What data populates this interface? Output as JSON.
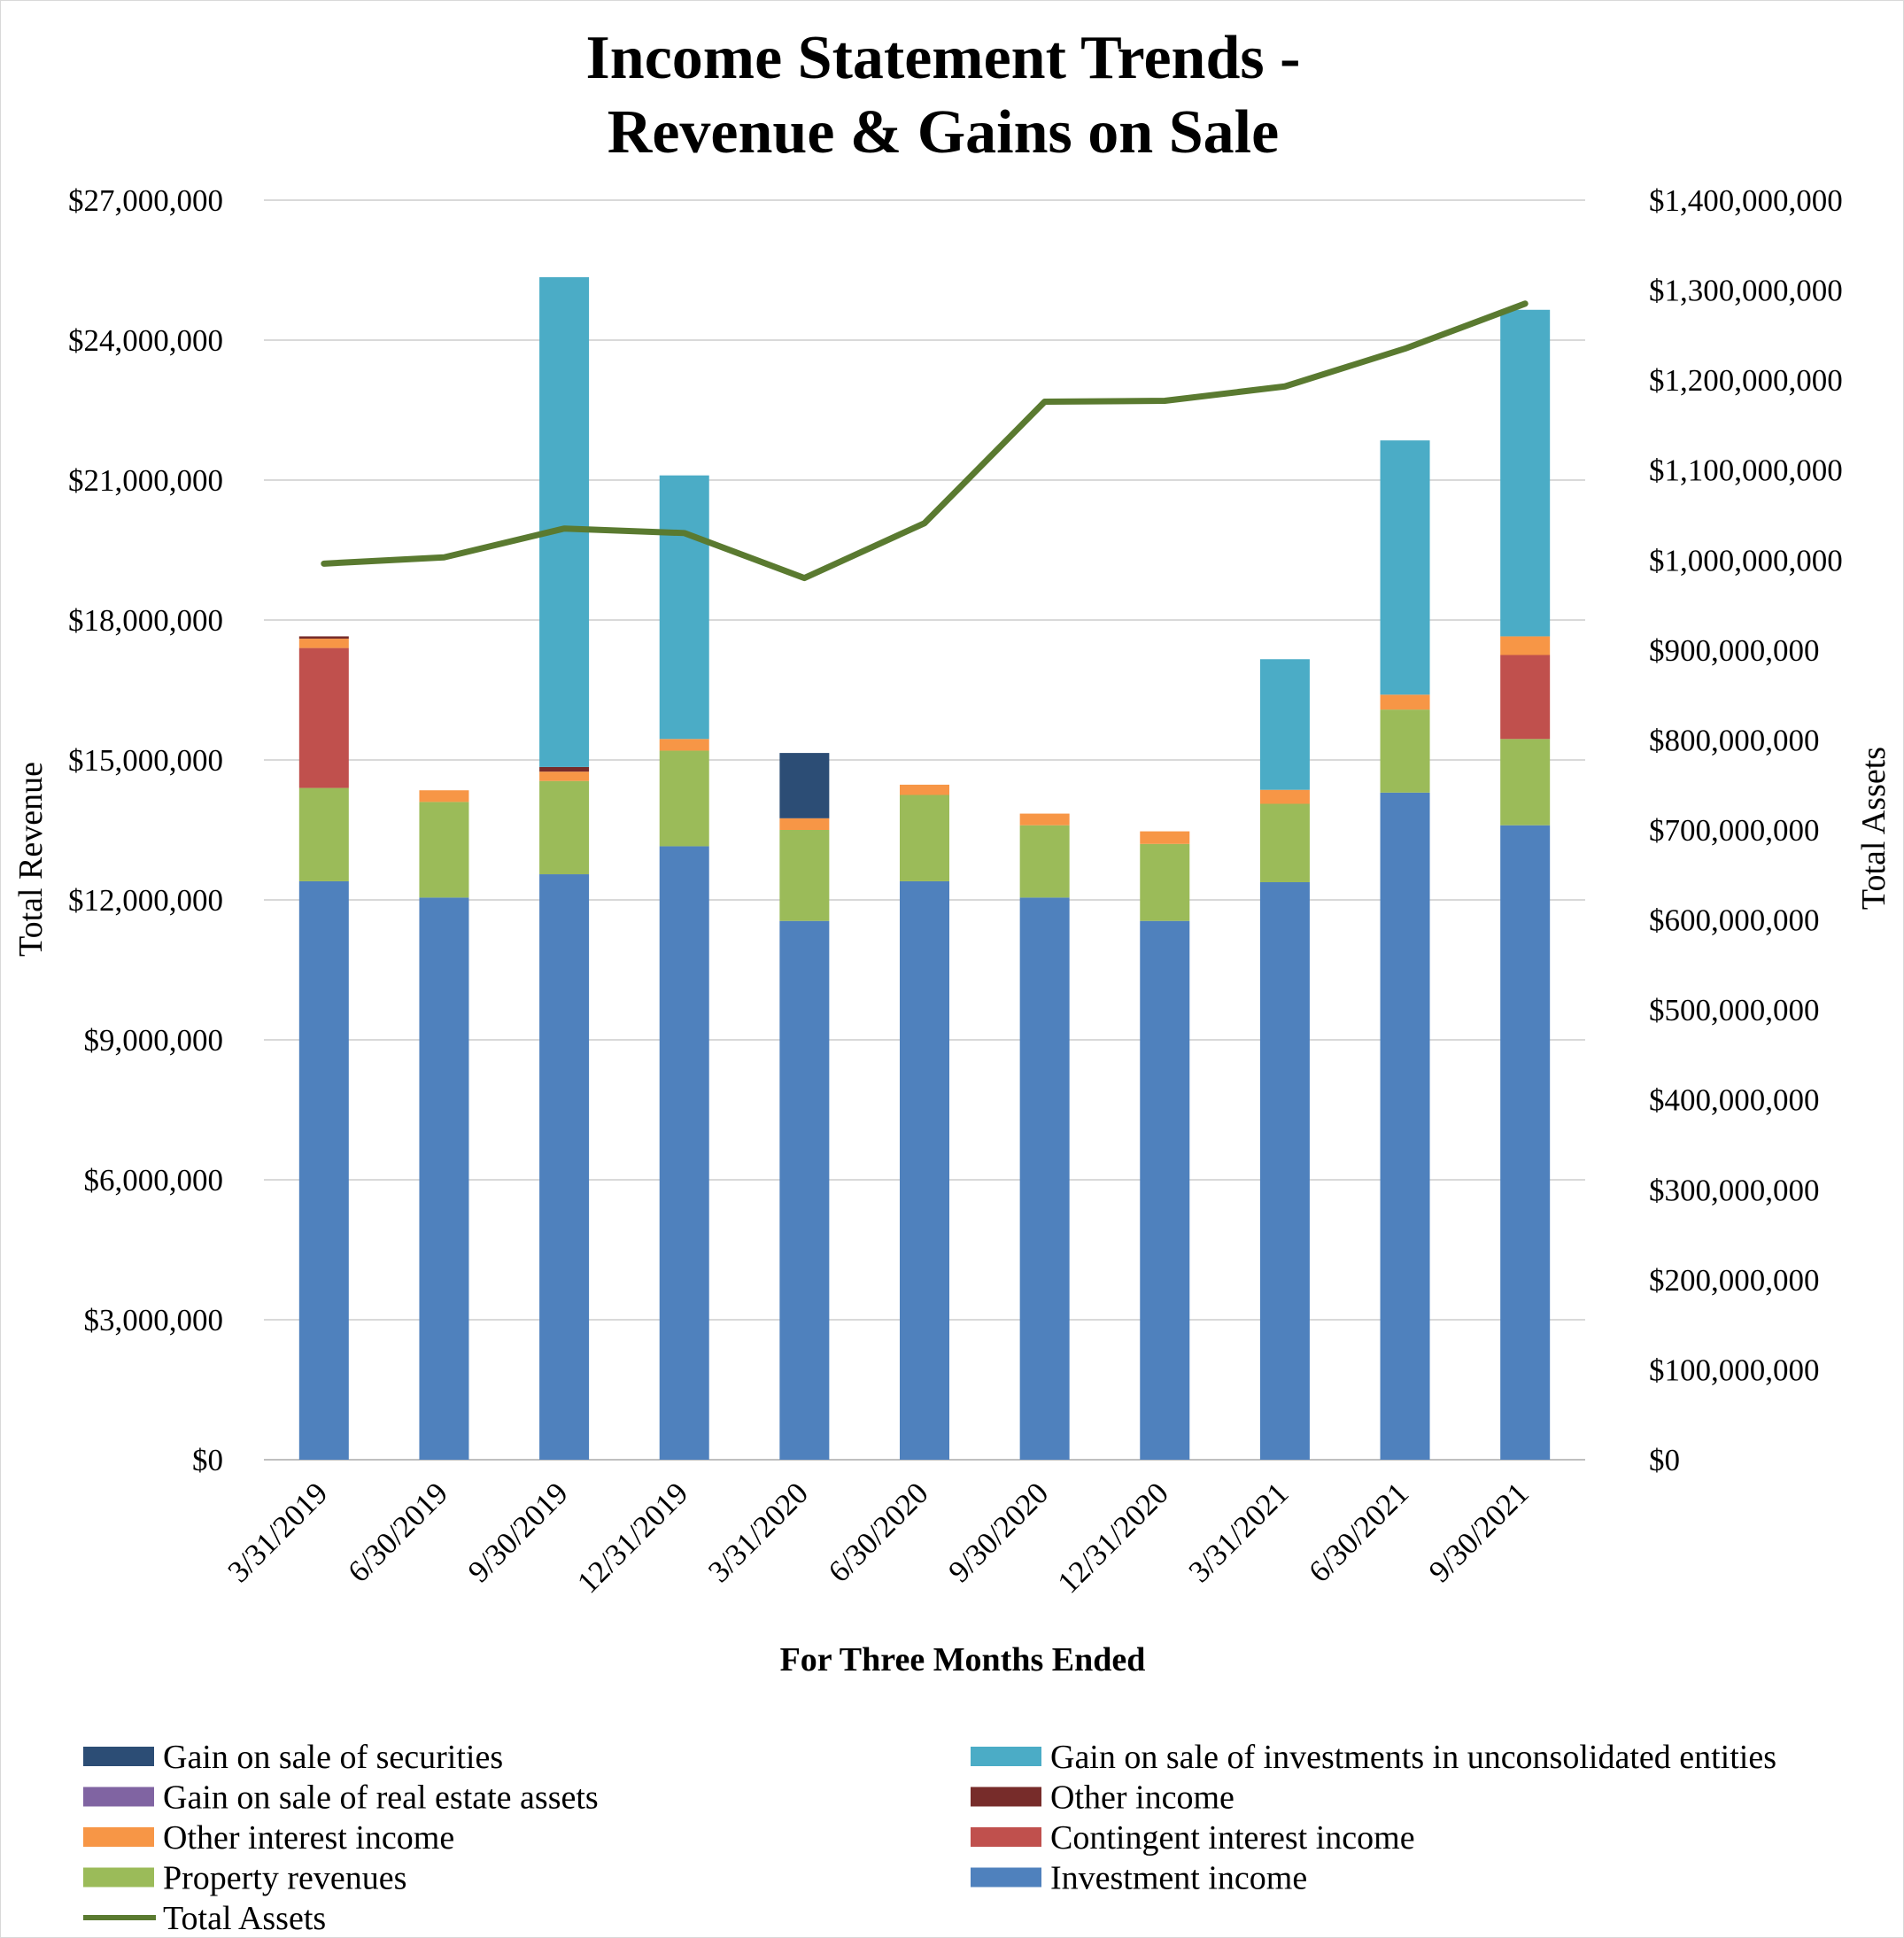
{
  "chart_data": {
    "type": "bar",
    "subtype": "stacked-bar-with-line",
    "title_line1": "Income Statement Trends -",
    "title_line2": "Revenue & Gains on Sale",
    "xlabel": "For Three Months Ended",
    "ylabel": "Total Revenue",
    "y2label": "Total Assets",
    "ylim": [
      0,
      27000000
    ],
    "y2lim": [
      0,
      1400000000
    ],
    "yticks": [
      0,
      3000000,
      6000000,
      9000000,
      12000000,
      15000000,
      18000000,
      21000000,
      24000000,
      27000000
    ],
    "y2ticks": [
      0,
      100000000,
      200000000,
      300000000,
      400000000,
      500000000,
      600000000,
      700000000,
      800000000,
      900000000,
      1000000000,
      1100000000,
      1200000000,
      1300000000,
      1400000000
    ],
    "ytick_labels": [
      "$0",
      "$3,000,000",
      "$6,000,000",
      "$9,000,000",
      "$12,000,000",
      "$15,000,000",
      "$18,000,000",
      "$21,000,000",
      "$24,000,000",
      "$27,000,000"
    ],
    "y2tick_labels": [
      "$0",
      "$100,000,000",
      "$200,000,000",
      "$300,000,000",
      "$400,000,000",
      "$500,000,000",
      "$600,000,000",
      "$700,000,000",
      "$800,000,000",
      "$900,000,000",
      "$1,000,000,000",
      "$1,100,000,000",
      "$1,200,000,000",
      "$1,300,000,000",
      "$1,400,000,000"
    ],
    "grid": true,
    "legend_position": "bottom",
    "categories": [
      "3/31/2019",
      "6/30/2019",
      "9/30/2019",
      "12/31/2019",
      "3/31/2020",
      "6/30/2020",
      "9/30/2020",
      "12/31/2020",
      "3/31/2021",
      "6/30/2021",
      "9/30/2021"
    ],
    "series": [
      {
        "name": "Investment income",
        "color": "#4f81bd",
        "values": [
          12400000,
          12050000,
          12550000,
          13150000,
          11550000,
          12400000,
          12050000,
          11550000,
          12380000,
          14300000,
          13600000
        ]
      },
      {
        "name": "Property revenues",
        "color": "#9bbb59",
        "values": [
          2000000,
          2050000,
          2000000,
          2050000,
          1950000,
          1850000,
          1550000,
          1650000,
          1680000,
          1780000,
          1850000
        ]
      },
      {
        "name": "Contingent interest income",
        "color": "#c0504d",
        "values": [
          3000000,
          0,
          0,
          0,
          0,
          0,
          0,
          0,
          0,
          0,
          1800000
        ]
      },
      {
        "name": "Other interest income",
        "color": "#f79646",
        "values": [
          200000,
          250000,
          200000,
          250000,
          250000,
          220000,
          250000,
          270000,
          300000,
          320000,
          400000
        ]
      },
      {
        "name": "Other income",
        "color": "#772c2a",
        "values": [
          50000,
          0,
          100000,
          0,
          0,
          0,
          0,
          0,
          0,
          0,
          0
        ]
      },
      {
        "name": "Gain on sale of real estate assets",
        "color": "#8064a2",
        "values": [
          0,
          0,
          0,
          0,
          0,
          0,
          0,
          0,
          0,
          0,
          0
        ]
      },
      {
        "name": "Gain on sale of securities",
        "color": "#2c4d75",
        "values": [
          0,
          0,
          0,
          0,
          1400000,
          0,
          0,
          0,
          0,
          0,
          0
        ]
      },
      {
        "name": "Gain on sale of investments in unconsolidated entities",
        "color": "#4bacc6",
        "values": [
          0,
          0,
          10500000,
          5650000,
          0,
          0,
          0,
          0,
          2800000,
          5450000,
          7000000
        ]
      }
    ],
    "line_series": {
      "name": "Total Assets",
      "color": "#5a7a30",
      "axis": "right",
      "values": [
        996000000,
        1003000000,
        1035000000,
        1030000000,
        980000000,
        1041000000,
        1176000000,
        1177000000,
        1193000000,
        1235000000,
        1285000000
      ]
    },
    "legend": [
      {
        "name": "Gain on sale of securities",
        "color": "#2c4d75",
        "kind": "box"
      },
      {
        "name": "Gain on sale of investments in unconsolidated entities",
        "color": "#4bacc6",
        "kind": "box"
      },
      {
        "name": "Gain on sale of real estate assets",
        "color": "#8064a2",
        "kind": "box"
      },
      {
        "name": "Other income",
        "color": "#772c2a",
        "kind": "box"
      },
      {
        "name": "Other interest income",
        "color": "#f79646",
        "kind": "box"
      },
      {
        "name": "Contingent interest income",
        "color": "#c0504d",
        "kind": "box"
      },
      {
        "name": "Property revenues",
        "color": "#9bbb59",
        "kind": "box"
      },
      {
        "name": "Investment income",
        "color": "#4f81bd",
        "kind": "box"
      },
      {
        "name": "Total Assets",
        "color": "#5a7a30",
        "kind": "line"
      }
    ]
  }
}
